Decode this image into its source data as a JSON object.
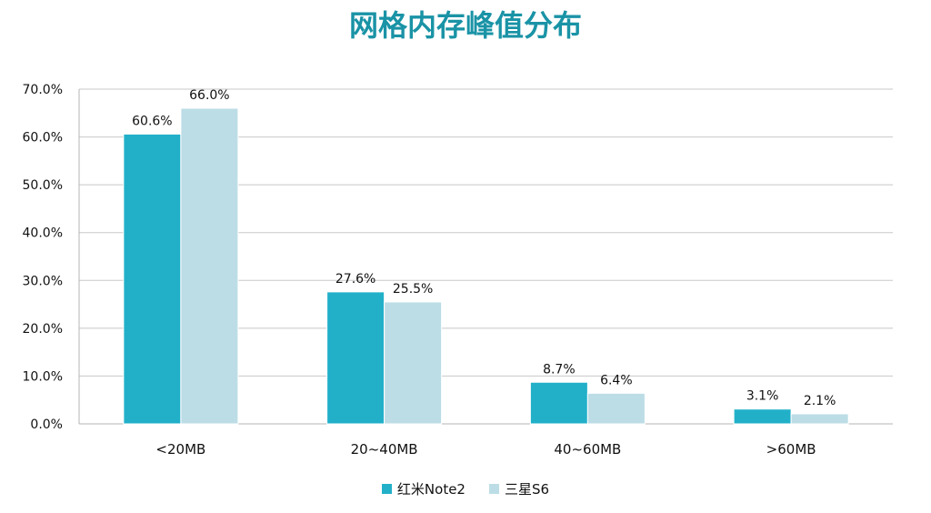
{
  "chart_data": {
    "type": "bar",
    "title": "网格内存峰值分布",
    "categories": [
      "<20MB",
      "20~40MB",
      "40~60MB",
      ">60MB"
    ],
    "series": [
      {
        "name": "红米Note2",
        "color": "#22b0c9",
        "values": [
          60.6,
          27.6,
          8.7,
          3.1
        ],
        "labels": [
          "60.6%",
          "27.6%",
          "8.7%",
          "3.1%"
        ]
      },
      {
        "name": "三星S6",
        "color": "#bcdde6",
        "values": [
          66.0,
          25.5,
          6.4,
          2.1
        ],
        "labels": [
          "66.0%",
          "25.5%",
          "6.4%",
          "2.1%"
        ]
      }
    ],
    "ylim": [
      0,
      70
    ],
    "yticks": [
      "0.0%",
      "10.0%",
      "20.0%",
      "30.0%",
      "40.0%",
      "50.0%",
      "60.0%",
      "70.0%"
    ],
    "xlabel": "",
    "ylabel": "",
    "grid": true,
    "legend": "bottom-center"
  }
}
